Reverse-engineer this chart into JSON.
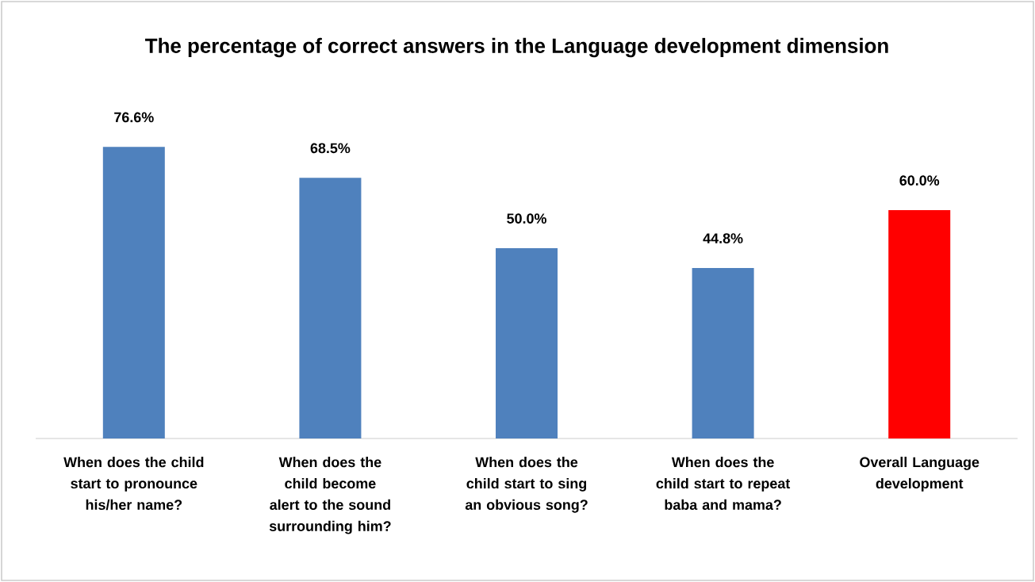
{
  "chart_data": {
    "type": "bar",
    "title": "The percentage of correct answers in the Language development dimension",
    "categories": [
      "When does the child start to pronounce his/her name?",
      "When does the child become alert to the sound surrounding him?",
      "When does the child start to sing an obvious song?",
      "When does the child start to repeat baba and mama?",
      "Overall Language development"
    ],
    "values": [
      76.6,
      68.5,
      50.0,
      44.8,
      60.0
    ],
    "colors": [
      "#4f81bd",
      "#4f81bd",
      "#4f81bd",
      "#4f81bd",
      "#ff0000"
    ],
    "value_labels": [
      "76.6%",
      "68.5%",
      "50.0%",
      "44.8%",
      "60.0%"
    ]
  }
}
